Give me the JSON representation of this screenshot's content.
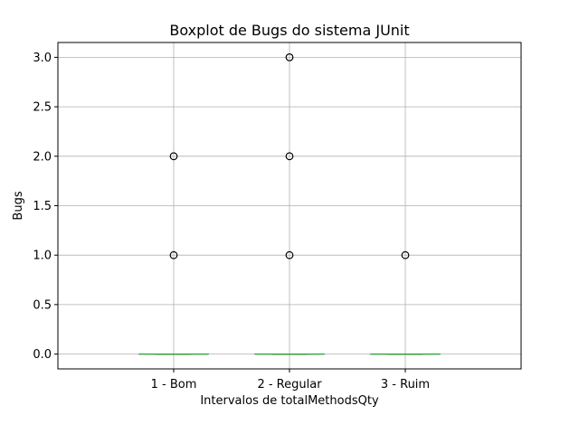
{
  "chart_data": {
    "type": "boxplot",
    "title": "Boxplot de Bugs do sistema JUnit",
    "xlabel": "Intervalos de totalMethodsQty",
    "ylabel": "Bugs",
    "ylim": [
      -0.15,
      3.15
    ],
    "yticks": [
      0.0,
      0.5,
      1.0,
      1.5,
      2.0,
      2.5,
      3.0
    ],
    "ytick_labels": [
      "0.0",
      "0.5",
      "1.0",
      "1.5",
      "2.0",
      "2.5",
      "3.0"
    ],
    "grid": true,
    "categories": [
      "1 - Bom",
      "2 - Regular",
      "3 - Ruim"
    ],
    "boxes": [
      {
        "category": "1 - Bom",
        "min": 0,
        "q1": 0,
        "median": 0,
        "q3": 0,
        "max": 0,
        "outliers": [
          1,
          2
        ]
      },
      {
        "category": "2 - Regular",
        "min": 0,
        "q1": 0,
        "median": 0,
        "q3": 0,
        "max": 0,
        "outliers": [
          1,
          2,
          3
        ]
      },
      {
        "category": "3 - Ruim",
        "min": 0,
        "q1": 0,
        "median": 0,
        "q3": 0,
        "max": 0,
        "outliers": [
          1
        ]
      }
    ],
    "colors": {
      "box": "#1f77b4",
      "median": "#2ca02c",
      "grid": "#b0b0b0",
      "outlier": "#000000"
    }
  }
}
